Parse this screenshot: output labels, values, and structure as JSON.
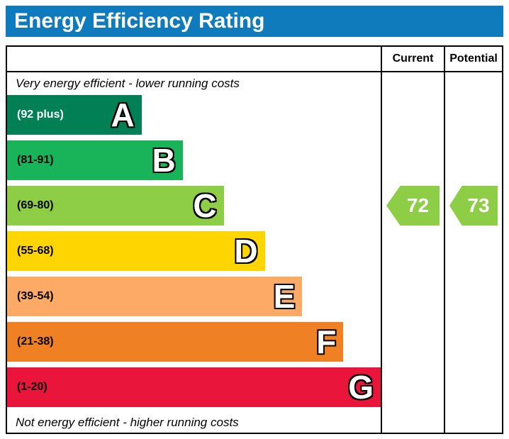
{
  "header": {
    "title": "Energy Efficiency Rating",
    "bg_color": "#0f7abc"
  },
  "columns": [
    {
      "label": "Current"
    },
    {
      "label": "Potential"
    }
  ],
  "notes": {
    "top": "Very energy efficient - lower running costs",
    "bottom": "Not energy efficient - higher running costs"
  },
  "bands": [
    {
      "letter": "A",
      "range": "(92 plus)",
      "color": "#008054",
      "width_pct": 36,
      "label_color": "#ffffff"
    },
    {
      "letter": "B",
      "range": "(81-91)",
      "color": "#19b459",
      "width_pct": 47,
      "label_color": "#000000"
    },
    {
      "letter": "C",
      "range": "(69-80)",
      "color": "#8dce46",
      "width_pct": 58,
      "label_color": "#000000"
    },
    {
      "letter": "D",
      "range": "(55-68)",
      "color": "#ffd500",
      "width_pct": 69,
      "label_color": "#000000"
    },
    {
      "letter": "E",
      "range": "(39-54)",
      "color": "#fcaa65",
      "width_pct": 79,
      "label_color": "#000000"
    },
    {
      "letter": "F",
      "range": "(21-38)",
      "color": "#ef8023",
      "width_pct": 90,
      "label_color": "#000000"
    },
    {
      "letter": "G",
      "range": "(1-20)",
      "color": "#e9153b",
      "width_pct": 100,
      "label_color": "#000000"
    }
  ],
  "ratings": {
    "current": {
      "value": "72",
      "color": "#8dce46",
      "band": "C"
    },
    "potential": {
      "value": "73",
      "color": "#8dce46",
      "band": "C"
    }
  },
  "chart_data": {
    "type": "bar",
    "title": "Energy Efficiency Rating",
    "categories": [
      "A (92 plus)",
      "B (81-91)",
      "C (69-80)",
      "D (55-68)",
      "E (39-54)",
      "F (21-38)",
      "G (1-20)"
    ],
    "values": [
      36,
      47,
      58,
      69,
      79,
      90,
      100
    ],
    "band_colors": [
      "#008054",
      "#19b459",
      "#8dce46",
      "#ffd500",
      "#fcaa65",
      "#ef8023",
      "#e9153b"
    ],
    "current_rating": 72,
    "potential_rating": 73,
    "current_band": "C",
    "potential_band": "C",
    "annotations": [
      "Very energy efficient - lower running costs",
      "Not energy efficient - higher running costs"
    ],
    "legend_position": "none",
    "grid": false
  }
}
